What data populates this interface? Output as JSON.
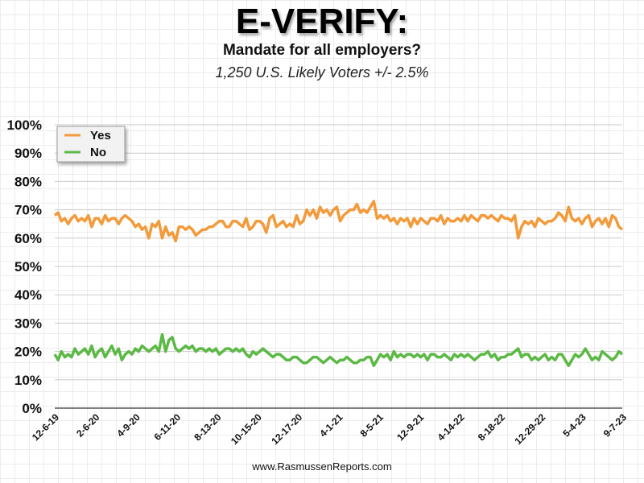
{
  "header": {
    "title": "E-VERIFY:",
    "subtitle": "Mandate for all employers?",
    "sample_note": "1,250 U.S. Likely Voters +/- 2.5%"
  },
  "footer": {
    "source": "www.RasmussenReports.com"
  },
  "colors": {
    "yes": "#f39a3a",
    "no": "#5cb946",
    "gridline": "#c9c9c9",
    "axis": "#555555"
  },
  "chart_data": {
    "type": "line",
    "title": "E-VERIFY:",
    "subtitle": "Mandate for all employers?",
    "xlabel": "",
    "ylabel": "",
    "ylim": [
      0,
      100
    ],
    "yticks": [
      "0%",
      "10%",
      "20%",
      "30%",
      "40%",
      "50%",
      "60%",
      "70%",
      "80%",
      "90%",
      "100%"
    ],
    "xticks": [
      "12-6-19",
      "2-6-20",
      "4-9-20",
      "6-11-20",
      "8-13-20",
      "10-15-20",
      "12-17-20",
      "4-1-21",
      "8-5-21",
      "12-9-21",
      "4-14-22",
      "8-18-22",
      "12-29-22",
      "5-4-23",
      "9-7-23"
    ],
    "legend": {
      "position": "top-left",
      "entries": [
        "Yes",
        "No"
      ]
    },
    "grid": true,
    "series": [
      {
        "name": "Yes",
        "values": [
          68,
          69,
          66,
          67,
          65,
          67,
          68,
          66,
          67,
          66,
          68,
          64,
          67,
          67,
          65,
          68,
          66,
          67,
          67,
          65,
          67,
          68,
          67,
          66,
          64,
          65,
          63,
          64,
          60,
          65,
          64,
          66,
          60,
          64,
          61,
          62,
          59,
          64,
          64,
          63,
          64,
          63,
          61,
          62,
          63,
          63,
          64,
          64,
          65,
          66,
          66,
          64,
          64,
          66,
          66,
          65,
          64,
          67,
          63,
          64,
          66,
          66,
          65,
          62,
          67,
          68,
          64,
          65,
          66,
          64,
          65,
          64,
          68,
          65,
          66,
          70,
          68,
          70,
          67,
          71,
          69,
          70,
          68,
          70,
          71,
          66,
          68,
          69,
          70,
          70,
          72,
          69,
          70,
          69,
          71,
          73,
          67,
          68,
          67,
          68,
          66,
          67,
          65,
          67,
          66,
          67,
          64,
          67,
          65,
          67,
          66,
          65,
          67,
          67,
          66,
          68,
          65,
          67,
          66,
          66,
          67,
          66,
          68,
          66,
          68,
          67,
          66,
          68,
          68,
          67,
          68,
          67,
          66,
          68,
          67,
          67,
          66,
          68,
          60,
          64,
          66,
          65,
          66,
          64,
          67,
          66,
          65,
          66,
          66,
          67,
          69,
          68,
          66,
          71,
          67,
          66,
          67,
          65,
          67,
          68,
          64,
          66,
          67,
          65,
          67,
          64,
          68,
          67,
          64,
          63
        ]
      },
      {
        "name": "No",
        "values": [
          19,
          17,
          20,
          18,
          19,
          18,
          21,
          19,
          20,
          21,
          19,
          22,
          18,
          20,
          21,
          18,
          20,
          22,
          19,
          21,
          17,
          19,
          20,
          19,
          21,
          20,
          22,
          21,
          20,
          21,
          22,
          20,
          26,
          20,
          24,
          25,
          21,
          20,
          21,
          22,
          21,
          22,
          20,
          21,
          21,
          20,
          21,
          20,
          21,
          19,
          20,
          21,
          21,
          20,
          21,
          20,
          21,
          19,
          18,
          20,
          19,
          20,
          21,
          20,
          19,
          18,
          19,
          19,
          18,
          17,
          17,
          18,
          18,
          17,
          16,
          16,
          17,
          18,
          18,
          17,
          16,
          17,
          18,
          17,
          16,
          17,
          17,
          18,
          17,
          16,
          16,
          17,
          17,
          18,
          18,
          15,
          17,
          19,
          18,
          19,
          17,
          20,
          18,
          19,
          18,
          19,
          19,
          18,
          19,
          18,
          19,
          17,
          19,
          19,
          18,
          18,
          19,
          18,
          17,
          19,
          18,
          19,
          18,
          19,
          18,
          17,
          18,
          19,
          19,
          20,
          18,
          19,
          17,
          18,
          18,
          19,
          19,
          20,
          21,
          18,
          19,
          19,
          17,
          18,
          17,
          18,
          19,
          17,
          18,
          17,
          19,
          19,
          17,
          15,
          17,
          19,
          18,
          19,
          21,
          19,
          17,
          18,
          17,
          20,
          19,
          18,
          17,
          18,
          20,
          19
        ]
      }
    ]
  }
}
